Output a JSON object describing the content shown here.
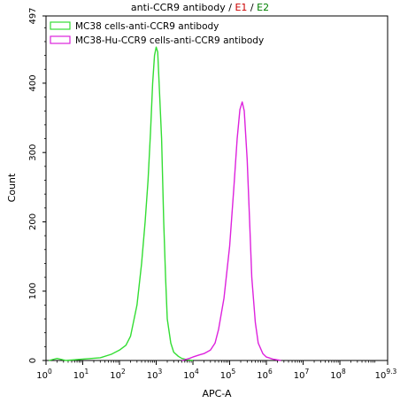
{
  "title": {
    "prefix": "anti-CCR9 antibody",
    "sep1": " / ",
    "e1": "E1",
    "sep2": " / ",
    "e2": "E2"
  },
  "colors": {
    "e1": "#cc0000",
    "e2": "#008000",
    "series1": "#33dd33",
    "series2": "#dd22dd"
  },
  "chart_data": {
    "type": "line",
    "title": "anti-CCR9 antibody / E1 / E2",
    "xlabel": "APC-A",
    "ylabel": "Count",
    "x_scale": "log10",
    "xlim": [
      1,
      1995262315
    ],
    "ylim": [
      0,
      497
    ],
    "x_ticks": [
      {
        "exp": "0"
      },
      {
        "exp": "1"
      },
      {
        "exp": "2"
      },
      {
        "exp": "3"
      },
      {
        "exp": "4"
      },
      {
        "exp": "5"
      },
      {
        "exp": "6"
      },
      {
        "exp": "7"
      },
      {
        "exp": "8"
      },
      {
        "exp": "9.3"
      }
    ],
    "y_ticks": [
      "0",
      "100",
      "200",
      "300",
      "400",
      "497"
    ],
    "legend_position": "top-left",
    "series": [
      {
        "name": "MC38 cells-anti-CCR9 antibody",
        "color": "#33dd33",
        "points": [
          [
            1.2,
            0
          ],
          [
            2.0,
            3
          ],
          [
            3.5,
            0
          ],
          [
            10,
            2
          ],
          [
            30,
            4
          ],
          [
            60,
            9
          ],
          [
            100,
            15
          ],
          [
            150,
            22
          ],
          [
            200,
            35
          ],
          [
            300,
            80
          ],
          [
            400,
            140
          ],
          [
            500,
            200
          ],
          [
            600,
            260
          ],
          [
            700,
            330
          ],
          [
            800,
            400
          ],
          [
            900,
            440
          ],
          [
            1000,
            452
          ],
          [
            1100,
            445
          ],
          [
            1200,
            400
          ],
          [
            1400,
            320
          ],
          [
            1600,
            200
          ],
          [
            1800,
            120
          ],
          [
            2000,
            60
          ],
          [
            2500,
            25
          ],
          [
            3000,
            12
          ],
          [
            4000,
            6
          ],
          [
            5000,
            3
          ],
          [
            7000,
            1
          ],
          [
            10000,
            0
          ]
        ]
      },
      {
        "name": "MC38-Hu-CCR9 cells-anti-CCR9 antibody",
        "color": "#dd22dd",
        "points": [
          [
            5000,
            0
          ],
          [
            8000,
            3
          ],
          [
            10000,
            5
          ],
          [
            15000,
            8
          ],
          [
            20000,
            10
          ],
          [
            30000,
            15
          ],
          [
            40000,
            25
          ],
          [
            50000,
            45
          ],
          [
            70000,
            90
          ],
          [
            100000,
            165
          ],
          [
            130000,
            250
          ],
          [
            160000,
            320
          ],
          [
            190000,
            362
          ],
          [
            220000,
            373
          ],
          [
            250000,
            360
          ],
          [
            300000,
            290
          ],
          [
            350000,
            200
          ],
          [
            400000,
            120
          ],
          [
            500000,
            55
          ],
          [
            600000,
            25
          ],
          [
            800000,
            10
          ],
          [
            1000000,
            5
          ],
          [
            1500000,
            2
          ],
          [
            2500000,
            0
          ]
        ]
      }
    ]
  }
}
